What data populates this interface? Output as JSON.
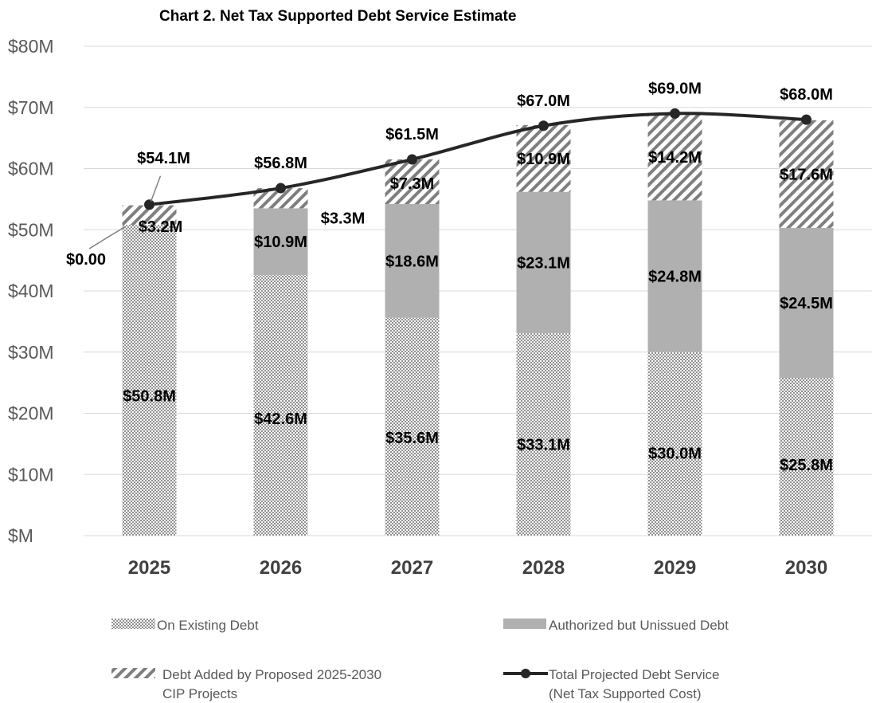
{
  "chart_data": {
    "type": "bar",
    "title": "Chart 2.  Net Tax Supported Debt Service Estimate",
    "stacked": true,
    "categories": [
      "2025",
      "2026",
      "2027",
      "2028",
      "2029",
      "2030"
    ],
    "ylim": [
      0,
      80
    ],
    "yticks": [
      {
        "value": 0,
        "label": "$M"
      },
      {
        "value": 10,
        "label": "$10M"
      },
      {
        "value": 20,
        "label": "$20M"
      },
      {
        "value": 30,
        "label": "$30M"
      },
      {
        "value": 40,
        "label": "$40M"
      },
      {
        "value": 50,
        "label": "$50M"
      },
      {
        "value": 60,
        "label": "$60M"
      },
      {
        "value": 70,
        "label": "$70M"
      },
      {
        "value": 80,
        "label": "$80M"
      }
    ],
    "grid": true,
    "legend_position": "bottom",
    "series": [
      {
        "name": "On Existing Debt",
        "style": "dotted-fill",
        "values": [
          50.8,
          42.6,
          35.6,
          33.1,
          30.0,
          25.8
        ],
        "labels": [
          "$50.8M",
          "$42.6M",
          "$35.6M",
          "$33.1M",
          "$30.0M",
          "$25.8M"
        ]
      },
      {
        "name": "Authorized but Unissued Debt",
        "style": "solid-gray",
        "color": "#b0b0b0",
        "values": [
          0,
          10.9,
          18.6,
          23.1,
          24.8,
          24.5
        ],
        "labels": [
          "",
          "$10.9M",
          "$18.6M",
          "$23.1M",
          "$24.8M",
          "$24.5M"
        ]
      },
      {
        "name": "Debt Added by Proposed 2025-2030 CIP Projects",
        "legend_lines": [
          "Debt Added by Proposed 2025-2030",
          "CIP Projects"
        ],
        "style": "diagonal-hatch",
        "values": [
          3.2,
          3.3,
          7.3,
          10.9,
          14.2,
          17.6
        ],
        "labels": [
          "$3.2M",
          "$3.3M",
          "$7.3M",
          "$10.9M",
          "$14.2M",
          "$17.6M"
        ]
      },
      {
        "name": "Total Projected Debt Service (Net Tax Supported Cost)",
        "legend_lines": [
          "Total Projected Debt Service",
          "(Net Tax Supported Cost)"
        ],
        "type": "line",
        "color": "#262626",
        "values": [
          54.1,
          56.8,
          61.5,
          67.0,
          69.0,
          68.0
        ],
        "labels": [
          "$54.1M",
          "$56.8M",
          "$61.5M",
          "$67.0M",
          "$69.0M",
          "$68.0M"
        ]
      }
    ],
    "annotations": [
      {
        "text": "$0.00",
        "category": "2025",
        "series": "Authorized but Unissued Debt"
      }
    ]
  }
}
